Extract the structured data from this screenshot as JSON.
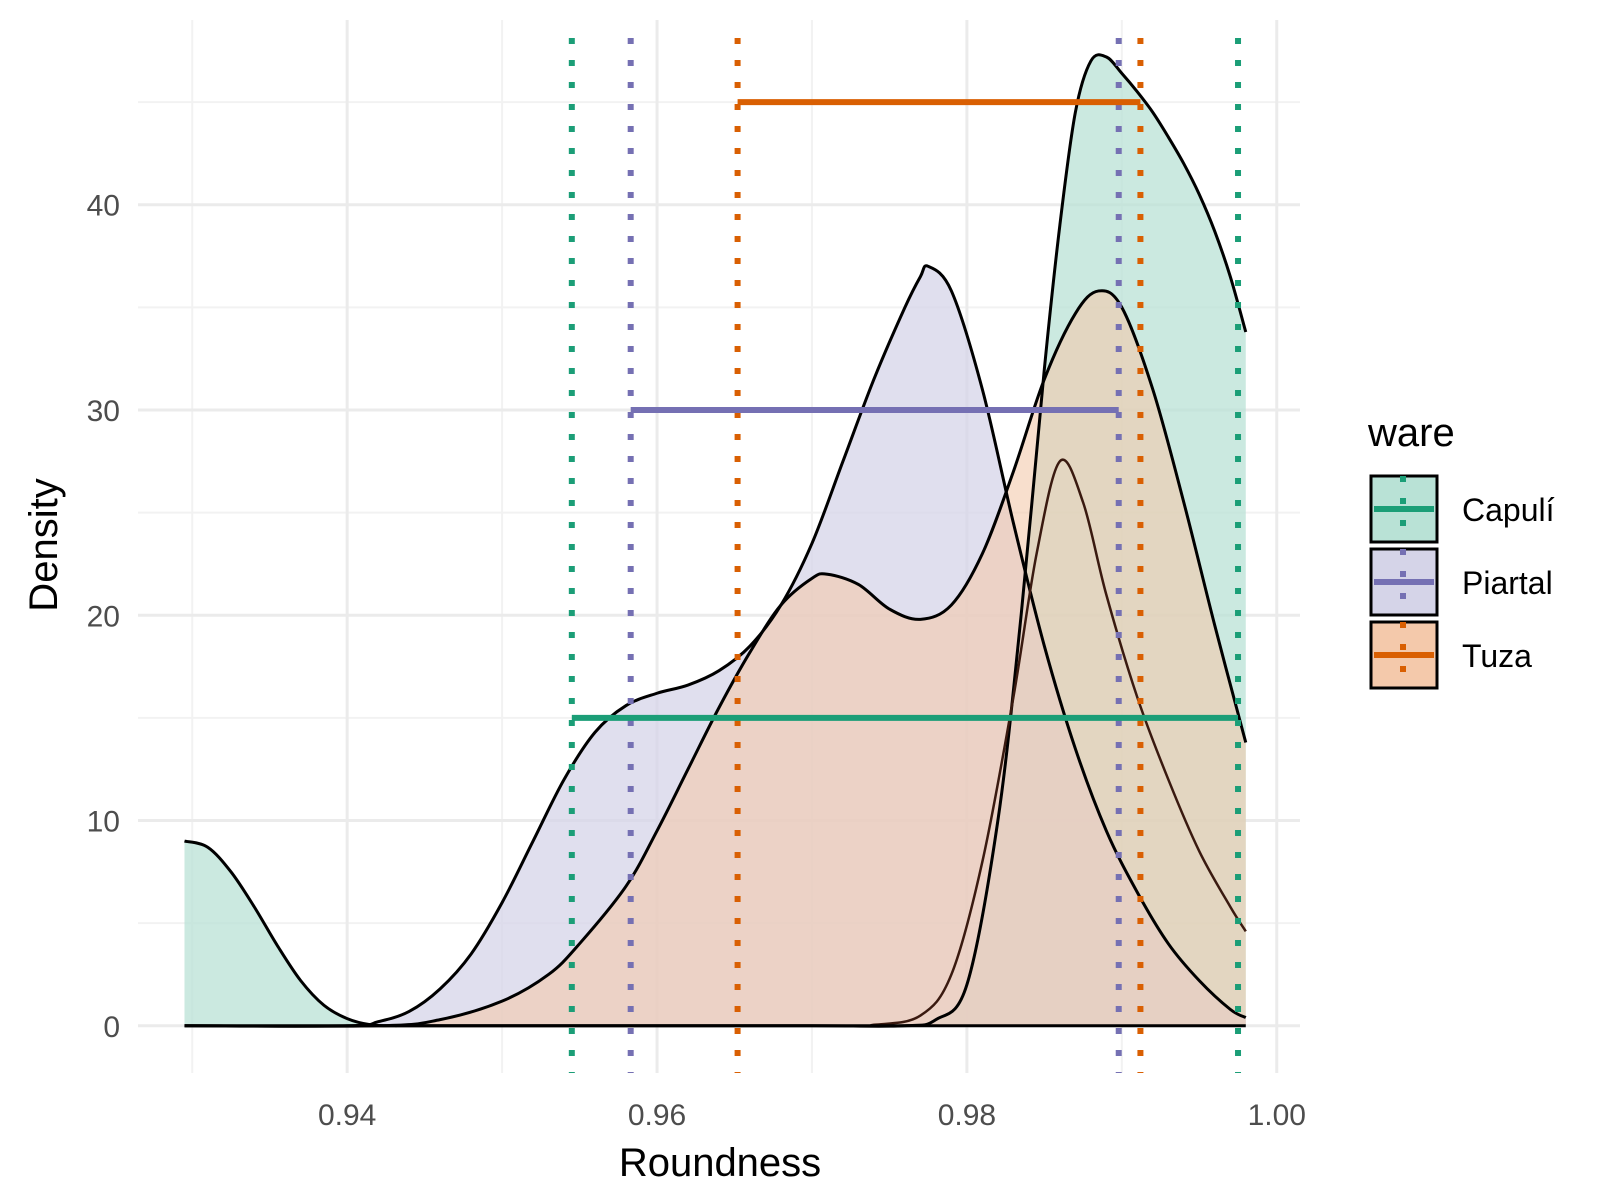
{
  "chart_data": {
    "type": "area",
    "xlabel": "Roundness",
    "ylabel": "Density",
    "xlim": [
      0.9265,
      1.0015
    ],
    "ylim": [
      -2.3,
      49.0
    ],
    "x_ticks": [
      0.94,
      0.96,
      0.98,
      1.0
    ],
    "x_tick_labels": [
      "0.94",
      "0.96",
      "0.98",
      "1.00"
    ],
    "y_ticks": [
      0,
      10,
      20,
      30,
      40
    ],
    "y_tick_labels": [
      "0",
      "10",
      "20",
      "30",
      "40"
    ],
    "grid": true,
    "legend": {
      "title": "ware",
      "placement": "right"
    },
    "series": [
      {
        "name": "Capulí",
        "color": "#1b9e77",
        "fill": "#b9e2d6",
        "fill_opacity": 0.75,
        "density": [
          [
            0.9295,
            9.0
          ],
          [
            0.931,
            8.7
          ],
          [
            0.9325,
            7.5
          ],
          [
            0.934,
            5.8
          ],
          [
            0.9355,
            3.9
          ],
          [
            0.937,
            2.2
          ],
          [
            0.9385,
            1.0
          ],
          [
            0.94,
            0.35
          ],
          [
            0.9415,
            0.05
          ],
          [
            0.943,
            0.0
          ],
          [
            0.945,
            0.0
          ],
          [
            0.96,
            0.0
          ],
          [
            0.97,
            0.0
          ],
          [
            0.976,
            0.0
          ],
          [
            0.978,
            0.3
          ],
          [
            0.98,
            2.0
          ],
          [
            0.982,
            10.0
          ],
          [
            0.9835,
            20.0
          ],
          [
            0.985,
            32.0
          ],
          [
            0.986,
            39.0
          ],
          [
            0.987,
            44.5
          ],
          [
            0.988,
            47.0
          ],
          [
            0.989,
            47.2
          ],
          [
            0.99,
            46.4
          ],
          [
            0.991,
            45.5
          ],
          [
            0.992,
            44.5
          ],
          [
            0.993,
            43.3
          ],
          [
            0.994,
            42.0
          ],
          [
            0.995,
            40.5
          ],
          [
            0.996,
            38.7
          ],
          [
            0.997,
            36.5
          ],
          [
            0.998,
            33.8
          ]
        ],
        "ci_low": 0.9545,
        "ci_high": 0.9975,
        "ci_y": 15
      },
      {
        "name": "Piartal",
        "color": "#7570b3",
        "fill": "#d5d4e8",
        "fill_opacity": 0.75,
        "density": [
          [
            0.9295,
            0.0
          ],
          [
            0.94,
            0.0
          ],
          [
            0.942,
            0.2
          ],
          [
            0.944,
            0.7
          ],
          [
            0.946,
            1.8
          ],
          [
            0.948,
            3.5
          ],
          [
            0.95,
            6.0
          ],
          [
            0.952,
            9.0
          ],
          [
            0.954,
            12.0
          ],
          [
            0.956,
            14.3
          ],
          [
            0.958,
            15.6
          ],
          [
            0.96,
            16.2
          ],
          [
            0.962,
            16.6
          ],
          [
            0.964,
            17.3
          ],
          [
            0.966,
            18.5
          ],
          [
            0.968,
            20.5
          ],
          [
            0.97,
            23.5
          ],
          [
            0.972,
            27.5
          ],
          [
            0.974,
            31.5
          ],
          [
            0.976,
            35.0
          ],
          [
            0.977,
            36.5
          ],
          [
            0.9775,
            37.0
          ],
          [
            0.979,
            35.8
          ],
          [
            0.981,
            31.0
          ],
          [
            0.983,
            24.5
          ],
          [
            0.985,
            18.5
          ],
          [
            0.987,
            13.5
          ],
          [
            0.989,
            9.5
          ],
          [
            0.991,
            6.5
          ],
          [
            0.993,
            4.0
          ],
          [
            0.995,
            2.2
          ],
          [
            0.997,
            0.8
          ],
          [
            0.998,
            0.4
          ]
        ],
        "ci_low": 0.9583,
        "ci_high": 0.9898,
        "ci_y": 30
      },
      {
        "name": "Tuza",
        "color": "#d95f02",
        "fill": "#f4c9ab",
        "fill_opacity": 0.6,
        "density": [
          [
            0.9295,
            0.0
          ],
          [
            0.942,
            0.0
          ],
          [
            0.946,
            0.3
          ],
          [
            0.95,
            1.2
          ],
          [
            0.953,
            2.5
          ],
          [
            0.955,
            4.0
          ],
          [
            0.958,
            6.8
          ],
          [
            0.96,
            9.5
          ],
          [
            0.962,
            12.5
          ],
          [
            0.964,
            15.5
          ],
          [
            0.966,
            18.2
          ],
          [
            0.968,
            20.5
          ],
          [
            0.97,
            21.8
          ],
          [
            0.971,
            22.0
          ],
          [
            0.973,
            21.5
          ],
          [
            0.975,
            20.3
          ],
          [
            0.977,
            19.8
          ],
          [
            0.979,
            20.5
          ],
          [
            0.981,
            23.0
          ],
          [
            0.983,
            27.0
          ],
          [
            0.985,
            31.5
          ],
          [
            0.987,
            34.7
          ],
          [
            0.9885,
            35.8
          ],
          [
            0.99,
            35.0
          ],
          [
            0.992,
            31.0
          ],
          [
            0.994,
            25.5
          ],
          [
            0.996,
            19.5
          ],
          [
            0.998,
            13.8
          ]
        ],
        "ci_low": 0.9652,
        "ci_high": 0.9912,
        "ci_y": 45
      }
    ],
    "extra_curve": {
      "stroke": "#000000",
      "density": [
        [
          0.9295,
          0.0
        ],
        [
          0.97,
          0.0
        ],
        [
          0.974,
          0.05
        ],
        [
          0.977,
          0.5
        ],
        [
          0.979,
          2.5
        ],
        [
          0.981,
          8.0
        ],
        [
          0.983,
          16.0
        ],
        [
          0.9845,
          23.0
        ],
        [
          0.986,
          27.5
        ],
        [
          0.9875,
          25.5
        ],
        [
          0.989,
          21.0
        ],
        [
          0.991,
          16.0
        ],
        [
          0.993,
          12.0
        ],
        [
          0.995,
          8.5
        ],
        [
          0.997,
          5.8
        ],
        [
          0.998,
          4.6
        ]
      ]
    }
  }
}
